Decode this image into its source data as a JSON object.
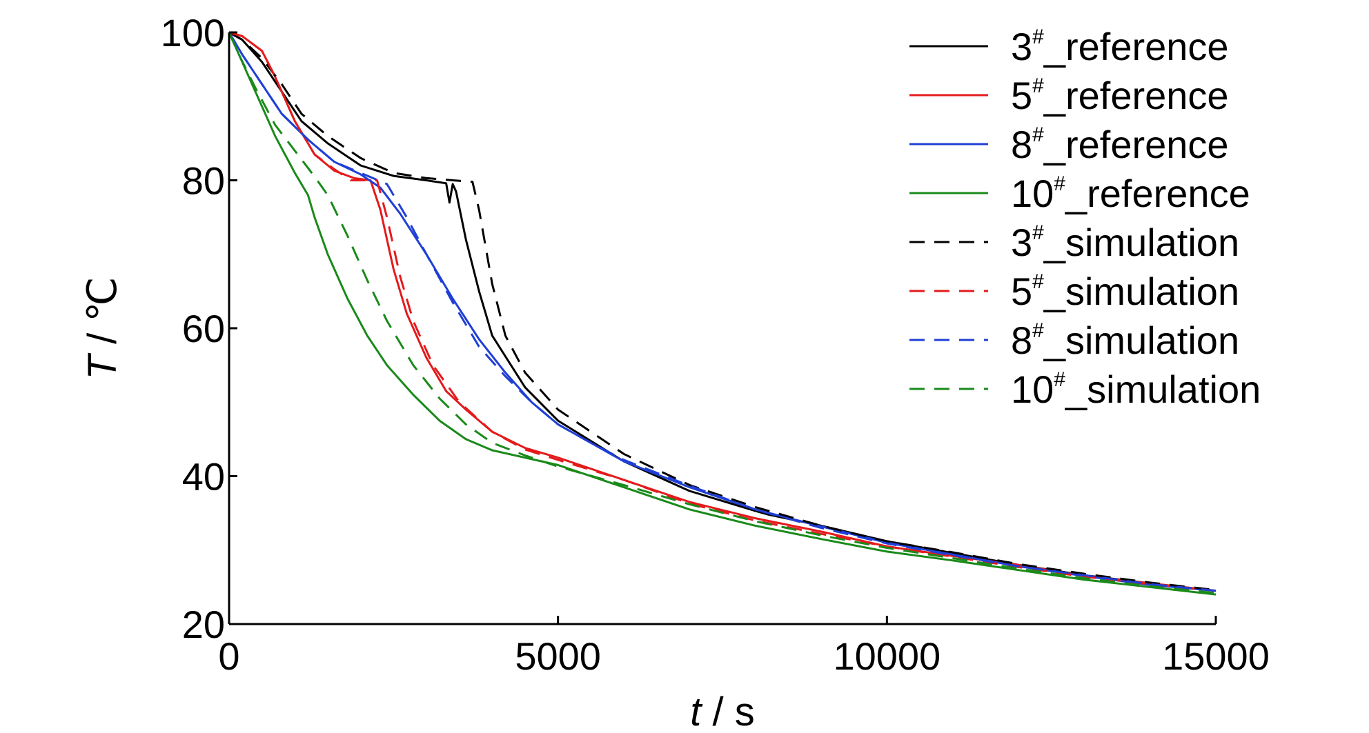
{
  "chart_data": {
    "type": "line",
    "xlabel_var": "t",
    "xlabel_unit": " / s",
    "ylabel_var": "T",
    "ylabel_unit": " / ℃",
    "xlim": [
      0,
      15000
    ],
    "ylim": [
      20,
      100
    ],
    "x_ticks": [
      0,
      5000,
      10000,
      15000
    ],
    "y_ticks": [
      20,
      40,
      60,
      80,
      100
    ],
    "grid": false,
    "legend_position": "top-right",
    "series": [
      {
        "name": "3#_reference",
        "label_main": "3",
        "label_sup": "#",
        "label_rest": "_reference",
        "color": "#000000",
        "dash": "solid",
        "x": [
          0,
          200,
          500,
          800,
          1100,
          1500,
          2000,
          2500,
          3000,
          3300,
          3350,
          3400,
          3450,
          3600,
          3800,
          4000,
          4500,
          5000,
          6000,
          7000,
          8000,
          8200,
          9000,
          10000,
          11000,
          12000,
          13000,
          14000,
          15000
        ],
        "y": [
          100,
          99,
          96,
          92,
          88,
          85,
          82,
          80.6,
          80,
          79.6,
          77,
          79.5,
          78.5,
          72,
          65,
          59,
          52,
          47.5,
          42,
          38,
          35.3,
          34.8,
          33.3,
          31.2,
          29.6,
          28,
          26.6,
          25.5,
          24.5
        ]
      },
      {
        "name": "5#_reference",
        "label_main": "5",
        "label_sup": "#",
        "label_rest": "_reference",
        "color": "#e41a1c",
        "dash": "solid",
        "x": [
          0,
          200,
          500,
          700,
          1000,
          1300,
          1600,
          1900,
          2150,
          2300,
          2500,
          2700,
          3000,
          3300,
          3600,
          4000,
          4500,
          5000,
          6000,
          7000,
          8000,
          9000,
          10000,
          11000,
          12000,
          13000,
          14000,
          15000
        ],
        "y": [
          100,
          99.5,
          97.5,
          94,
          88,
          83.5,
          81.3,
          80.3,
          80,
          76,
          68,
          62,
          56,
          51.5,
          49,
          46,
          43.8,
          42.5,
          39.5,
          36.5,
          34.3,
          32.5,
          30.5,
          29.2,
          28,
          26.5,
          25.5,
          24.5
        ]
      },
      {
        "name": "8#_reference",
        "label_main": "8",
        "label_sup": "#",
        "label_rest": "_reference",
        "color": "#1f3fd6",
        "dash": "solid",
        "x": [
          0,
          200,
          500,
          800,
          1200,
          1600,
          2000,
          2300,
          2600,
          3000,
          3400,
          3800,
          4200,
          4600,
          5000,
          5500,
          6000,
          7000,
          8000,
          9000,
          10000,
          11000,
          12000,
          13000,
          14000,
          15000
        ],
        "y": [
          100,
          97,
          93,
          89,
          85.5,
          82.5,
          80.8,
          79,
          75.5,
          70,
          64,
          58.5,
          54,
          50,
          47,
          44.5,
          42,
          38.5,
          35.5,
          33.2,
          31,
          29.4,
          27.8,
          26.5,
          25.3,
          24.5
        ]
      },
      {
        "name": "10#_reference",
        "label_main": "10",
        "label_sup": "#",
        "label_rest": "_reference",
        "color": "#1a8a1a",
        "dash": "solid",
        "x": [
          0,
          150,
          400,
          700,
          1000,
          1200,
          1300,
          1500,
          1800,
          2100,
          2400,
          2800,
          3200,
          3600,
          4000,
          4500,
          5000,
          6000,
          7000,
          8000,
          9000,
          10000,
          11000,
          12000,
          13000,
          14000,
          15000
        ],
        "y": [
          100,
          97,
          92,
          86,
          81,
          78,
          75,
          70,
          64,
          59,
          55,
          51,
          47.5,
          45,
          43.5,
          42.5,
          41.5,
          38.5,
          35.5,
          33.3,
          31.5,
          29.8,
          28.6,
          27.3,
          26,
          25,
          24
        ]
      },
      {
        "name": "3#_simulation",
        "label_main": "3",
        "label_sup": "#",
        "label_rest": "_simulation",
        "color": "#000000",
        "dash": "dashed",
        "x": [
          0,
          200,
          500,
          800,
          1100,
          1500,
          2000,
          2500,
          3000,
          3400,
          3700,
          3800,
          4000,
          4200,
          4500,
          5000,
          6000,
          7000,
          8000,
          9000,
          10000,
          11000,
          12000,
          13000,
          14000,
          15000
        ],
        "y": [
          100,
          99,
          96.5,
          93,
          89,
          86,
          83,
          81,
          80.3,
          80,
          79.8,
          76,
          66,
          59,
          54,
          49,
          43,
          38.8,
          35.8,
          33.3,
          31.2,
          29.7,
          28.1,
          26.8,
          25.6,
          24.6
        ]
      },
      {
        "name": "5#_simulation",
        "label_main": "5",
        "label_sup": "#",
        "label_rest": "_simulation",
        "color": "#e41a1c",
        "dash": "dashed",
        "x": [
          0,
          200,
          500,
          700,
          1000,
          1300,
          1600,
          1850,
          2250,
          2400,
          2600,
          2800,
          3100,
          3500,
          4000,
          4500,
          5000,
          6000,
          7000,
          8000,
          9000,
          10000,
          11000,
          12000,
          13000,
          14000,
          15000
        ],
        "y": [
          100,
          99.5,
          97.5,
          94,
          88,
          83.5,
          81.5,
          80,
          80,
          75,
          67,
          61,
          55,
          50,
          46,
          43.6,
          42.2,
          39.5,
          36.3,
          34,
          32.2,
          30.5,
          29.1,
          27.7,
          26.4,
          25.4,
          24.5
        ]
      },
      {
        "name": "8#_simulation",
        "label_main": "8",
        "label_sup": "#",
        "label_rest": "_simulation",
        "color": "#1f3fd6",
        "dash": "dashed",
        "x": [
          0,
          200,
          500,
          800,
          1200,
          1600,
          2000,
          2400,
          2700,
          3000,
          3400,
          3800,
          4200,
          4600,
          5000,
          5500,
          6000,
          7000,
          8000,
          9000,
          10000,
          11000,
          12000,
          13000,
          14000,
          15000
        ],
        "y": [
          100,
          97,
          93,
          89,
          85.5,
          82.5,
          81,
          79.5,
          75,
          70,
          63.5,
          57.5,
          53.5,
          50,
          47,
          44.5,
          42.2,
          38.7,
          35.5,
          33,
          30.9,
          29.3,
          27.8,
          26.6,
          25.4,
          24.5
        ]
      },
      {
        "name": "10#_simulation",
        "label_main": "10",
        "label_sup": "#",
        "label_rest": "_simulation",
        "color": "#1a8a1a",
        "dash": "dashed",
        "x": [
          0,
          150,
          400,
          700,
          1000,
          1300,
          1500,
          1800,
          2100,
          2400,
          2800,
          3200,
          3600,
          4000,
          4500,
          5000,
          6000,
          7000,
          8000,
          9000,
          10000,
          11000,
          12000,
          13000,
          14000,
          15000
        ],
        "y": [
          100,
          97,
          92.5,
          87.5,
          84,
          80.5,
          78,
          72.5,
          66.5,
          61,
          55,
          50.5,
          47,
          44.5,
          42.8,
          41.3,
          38.8,
          36.2,
          33.9,
          32,
          30.3,
          28.9,
          27.5,
          26.2,
          25.1,
          24.2
        ]
      }
    ]
  }
}
